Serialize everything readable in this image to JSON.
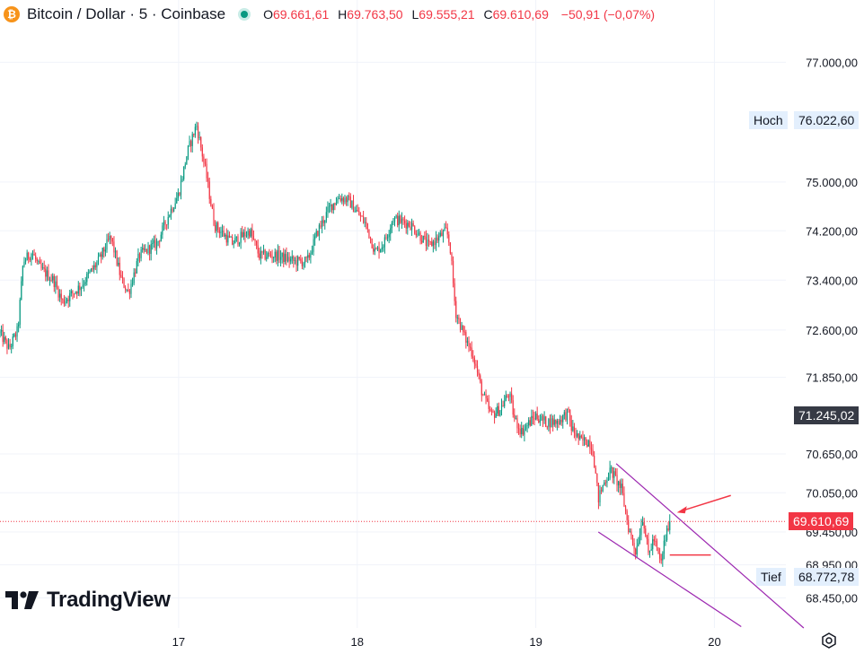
{
  "header": {
    "symbol_title": "Bitcoin / Dollar · 5 · Coinbase",
    "icon": "bitcoin-icon",
    "market_status_icon": "market-open-dot-icon",
    "open_label": "O",
    "open_value": "69.661,61",
    "high_label": "H",
    "high_value": "69.763,50",
    "low_label": "L",
    "low_value": "69.555,21",
    "close_label": "C",
    "close_value": "69.610,69",
    "change": "−50,91 (−0,07%)"
  },
  "branding": {
    "logo_text": "TradingView"
  },
  "colors": {
    "up": "#089981",
    "down": "#f23645",
    "channel": "#9c27b0",
    "arrow": "#f23645",
    "label_bg": "#e3effd",
    "dark_label_bg": "#363a45",
    "last_price_bg": "#f23645"
  },
  "chart_data": {
    "type": "candlestick",
    "y_axis": {
      "ticks": [
        77000,
        75000,
        74200,
        73400,
        72600,
        71850,
        70650,
        70050,
        69450,
        68950,
        68450
      ],
      "tick_labels": [
        "77.000,00",
        "75.000,00",
        "74.200,00",
        "73.400,00",
        "72.600,00",
        "71.850,00",
        "70.650,00",
        "70.050,00",
        "69.450,00",
        "68.950,00",
        "68.450,00"
      ],
      "range": [
        68000,
        77600
      ],
      "scale": "log"
    },
    "x_axis": {
      "ticks": [
        "17",
        "18",
        "19",
        "20"
      ]
    },
    "grid": true,
    "price_path": [
      [
        16.0,
        72550
      ],
      [
        16.05,
        72300
      ],
      [
        16.1,
        72600
      ],
      [
        16.13,
        73700
      ],
      [
        16.18,
        73850
      ],
      [
        16.22,
        73600
      ],
      [
        16.3,
        73400
      ],
      [
        16.35,
        73050
      ],
      [
        16.45,
        73300
      ],
      [
        16.55,
        73700
      ],
      [
        16.62,
        74100
      ],
      [
        16.68,
        73400
      ],
      [
        16.72,
        73200
      ],
      [
        16.78,
        73800
      ],
      [
        16.88,
        74000
      ],
      [
        16.95,
        74500
      ],
      [
        17.0,
        74800
      ],
      [
        17.05,
        75500
      ],
      [
        17.1,
        75950
      ],
      [
        17.15,
        75200
      ],
      [
        17.2,
        74300
      ],
      [
        17.3,
        74000
      ],
      [
        17.4,
        74200
      ],
      [
        17.45,
        73800
      ],
      [
        17.55,
        73800
      ],
      [
        17.65,
        73700
      ],
      [
        17.72,
        73700
      ],
      [
        17.78,
        74200
      ],
      [
        17.85,
        74600
      ],
      [
        17.9,
        74750
      ],
      [
        17.95,
        74700
      ],
      [
        18.05,
        74300
      ],
      [
        18.1,
        73850
      ],
      [
        18.15,
        74000
      ],
      [
        18.2,
        74400
      ],
      [
        18.3,
        74300
      ],
      [
        18.4,
        73950
      ],
      [
        18.5,
        74200
      ],
      [
        18.52,
        73950
      ],
      [
        18.55,
        72900
      ],
      [
        18.6,
        72500
      ],
      [
        18.65,
        72200
      ],
      [
        18.7,
        71600
      ],
      [
        18.75,
        71250
      ],
      [
        18.8,
        71350
      ],
      [
        18.85,
        71600
      ],
      [
        18.88,
        71200
      ],
      [
        18.92,
        71000
      ],
      [
        19.0,
        71250
      ],
      [
        19.05,
        71150
      ],
      [
        19.12,
        71150
      ],
      [
        19.18,
        71300
      ],
      [
        19.2,
        71050
      ],
      [
        19.25,
        70850
      ],
      [
        19.3,
        70850
      ],
      [
        19.32,
        70700
      ],
      [
        19.35,
        69950
      ],
      [
        19.38,
        70200
      ],
      [
        19.42,
        70400
      ],
      [
        19.48,
        70100
      ],
      [
        19.52,
        69500
      ],
      [
        19.56,
        69150
      ],
      [
        19.6,
        69700
      ],
      [
        19.63,
        69100
      ],
      [
        19.66,
        69350
      ],
      [
        19.7,
        68950
      ],
      [
        19.72,
        69300
      ],
      [
        19.75,
        69610.69
      ]
    ],
    "current_price": 69610.69,
    "annotations": {
      "high_label": "Hoch",
      "high_value_label": "76.022,60",
      "high_value": 76022.6,
      "low_label": "Tief",
      "low_value_label": "68.772,78",
      "low_value": 68772.78,
      "marker_value_label": "71.245,02",
      "marker_value": 71245.02,
      "last_price_label": "69.610,69",
      "channel_upper": [
        [
          19.45,
          70500
        ],
        [
          20.5,
          68000
        ]
      ],
      "channel_lower": [
        [
          19.35,
          69450
        ],
        [
          20.15,
          68020
        ]
      ],
      "support_segment": [
        [
          19.75,
          69100
        ],
        [
          19.98,
          69100
        ]
      ]
    }
  }
}
